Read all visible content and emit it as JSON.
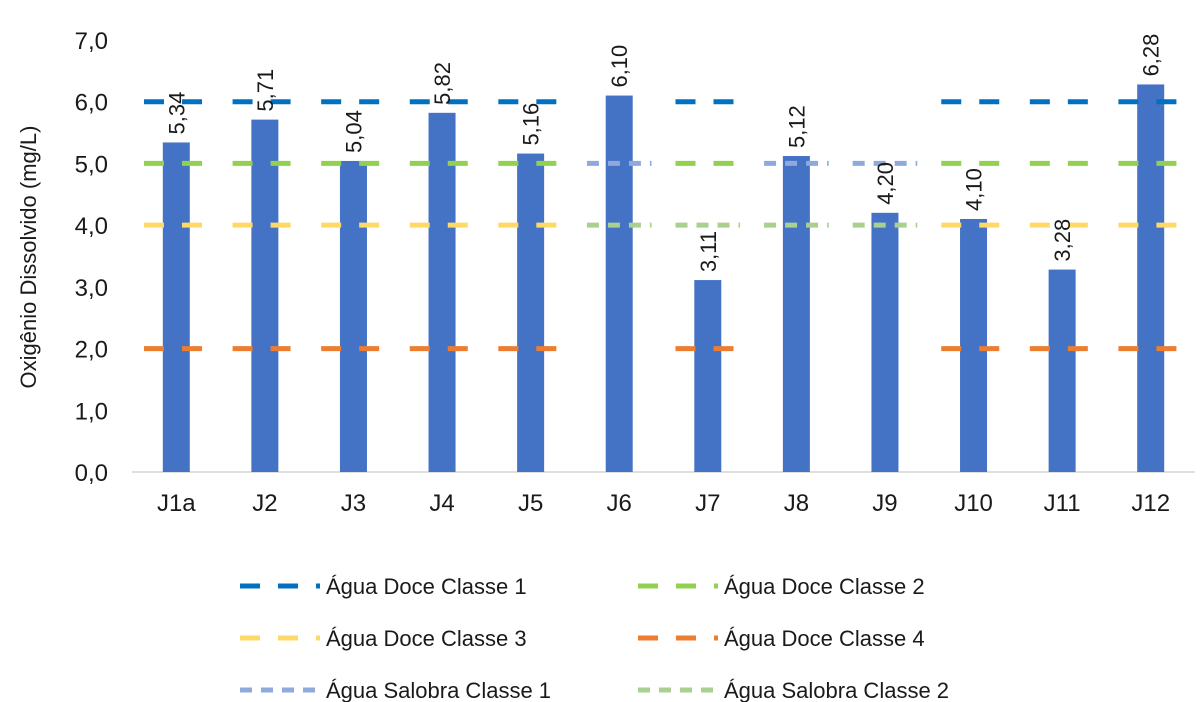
{
  "chart_data": {
    "type": "bar",
    "categories": [
      "J1a",
      "J2",
      "J3",
      "J4",
      "J5",
      "J6",
      "J7",
      "J8",
      "J9",
      "J10",
      "J11",
      "J12"
    ],
    "values": [
      5.34,
      5.71,
      5.04,
      5.82,
      5.16,
      6.1,
      3.11,
      5.12,
      4.2,
      4.1,
      3.28,
      6.28
    ],
    "value_labels": [
      "5,34",
      "5,71",
      "5,04",
      "5,82",
      "5,16",
      "6,10",
      "3,11",
      "5,12",
      "4,20",
      "4,10",
      "3,28",
      "6,28"
    ],
    "bar_color": "#4472C4",
    "ylabel": "Oxigênio Dissolvido (mg/L)",
    "ylim": [
      0,
      7
    ],
    "yticks": [
      "0,0",
      "1,0",
      "2,0",
      "3,0",
      "4,0",
      "5,0",
      "6,0",
      "7,0"
    ],
    "grid": false,
    "legend_position": "bottom",
    "reference_lines": [
      {
        "name": "Água Doce Classe 1",
        "value": 6,
        "color": "#0070C0",
        "dash": "long",
        "categories": [
          "J1a",
          "J2",
          "J3",
          "J4",
          "J5",
          "J7",
          "J10",
          "J11",
          "J12"
        ]
      },
      {
        "name": "Água Doce Classe 2",
        "value": 5,
        "color": "#92D050",
        "dash": "long",
        "categories": [
          "J1a",
          "J2",
          "J3",
          "J4",
          "J5",
          "J7",
          "J10",
          "J11",
          "J12"
        ]
      },
      {
        "name": "Água Doce Classe 3",
        "value": 4,
        "color": "#FFD966",
        "dash": "long",
        "categories": [
          "J1a",
          "J2",
          "J3",
          "J4",
          "J5",
          "J10",
          "J11",
          "J12"
        ]
      },
      {
        "name": "Água Doce Classe 4",
        "value": 2,
        "color": "#ED7D31",
        "dash": "long",
        "categories": [
          "J1a",
          "J2",
          "J3",
          "J4",
          "J5",
          "J7",
          "J10",
          "J11",
          "J12"
        ]
      },
      {
        "name": "Água Salobra Classe 1",
        "value": 5,
        "color": "#8EA9DB",
        "dash": "short",
        "categories": [
          "J6",
          "J8",
          "J9"
        ]
      },
      {
        "name": "Água Salobra Classe 2",
        "value": 4,
        "color": "#A9D08E",
        "dash": "short",
        "categories": [
          "J6",
          "J7",
          "J8",
          "J9"
        ]
      }
    ]
  }
}
